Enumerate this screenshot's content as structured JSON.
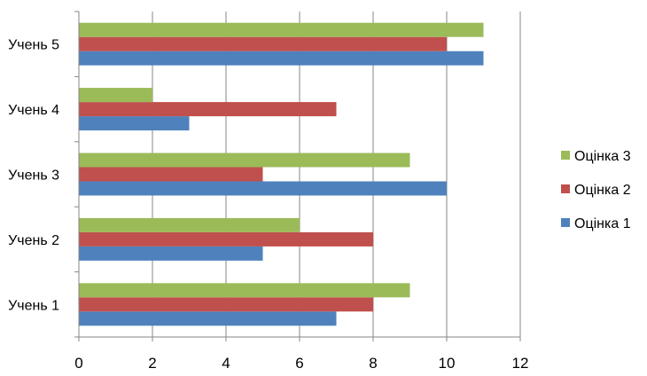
{
  "chart_data": {
    "type": "bar",
    "orientation": "horizontal",
    "categories": [
      "Учень 1",
      "Учень 2",
      "Учень 3",
      "Учень 4",
      "Учень 5"
    ],
    "series": [
      {
        "name": "Оцінка 1",
        "color": "#4f81bd",
        "values": [
          7,
          5,
          10,
          3,
          11
        ]
      },
      {
        "name": "Оцінка 2",
        "color": "#c0504d",
        "values": [
          8,
          8,
          5,
          7,
          10
        ]
      },
      {
        "name": "Оцінка 3",
        "color": "#9bbb59",
        "values": [
          9,
          6,
          9,
          2,
          11
        ]
      }
    ],
    "xlim": [
      0,
      12
    ],
    "xticks": [
      0,
      2,
      4,
      6,
      8,
      10,
      12
    ],
    "grid": true,
    "legend_position": "right"
  }
}
